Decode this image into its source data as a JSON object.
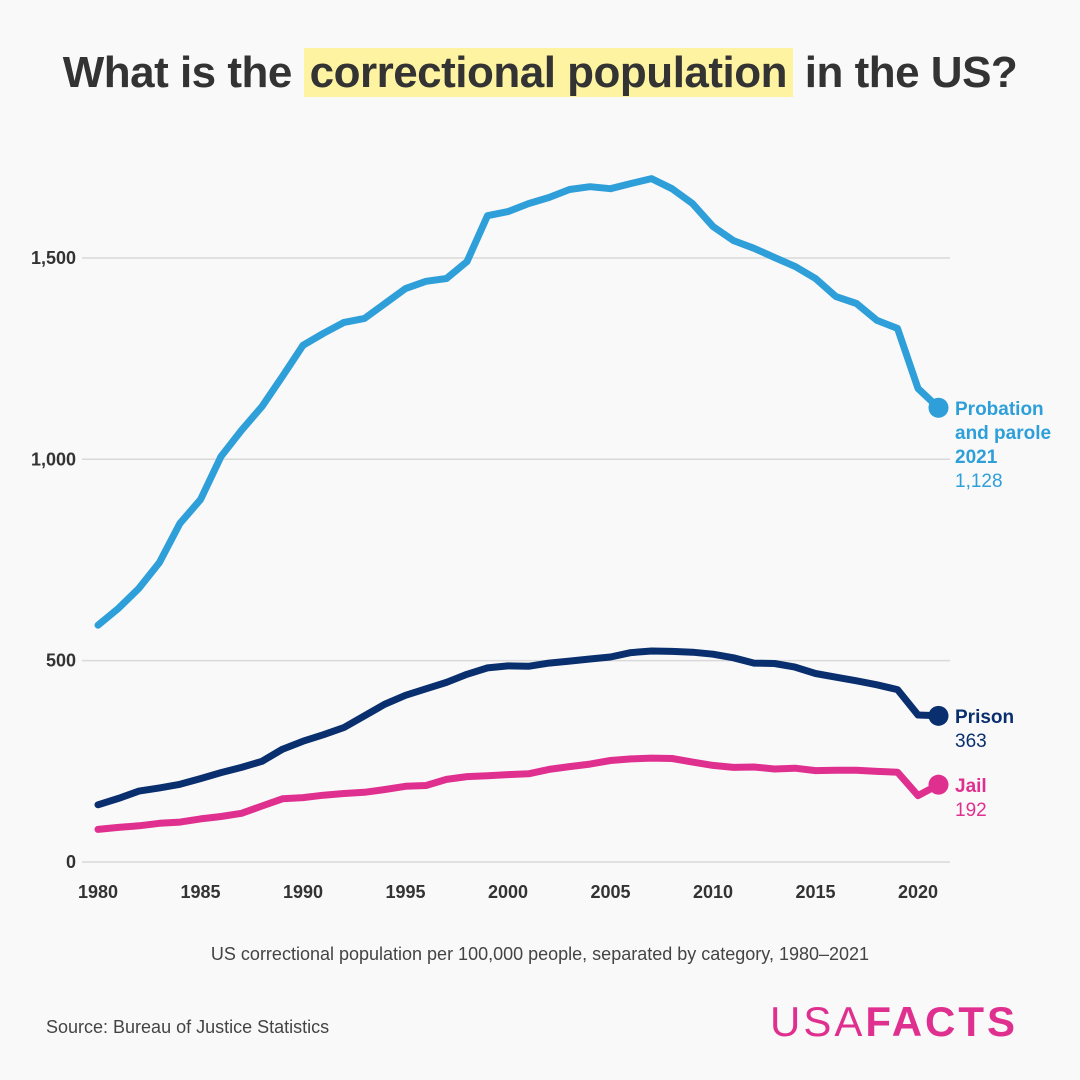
{
  "title": {
    "pre": "What is the ",
    "highlight": "correctional population",
    "post": " in the US?"
  },
  "subtitle": "US correctional population per 100,000 people, separated by category, 1980–2021",
  "source": "Source: Bureau of Justice Statistics",
  "logo": {
    "light": "USA",
    "bold": "FACTS"
  },
  "colors": {
    "probation": "#2e9fd9",
    "prison": "#0a2f6e",
    "jail": "#e0308f",
    "highlight": "#fdf3a0",
    "grid": "#d9d9d9"
  },
  "chart_data": {
    "type": "line",
    "title": "What is the correctional population in the US?",
    "subtitle": "US correctional population per 100,000 people, separated by category, 1980–2021",
    "xlim": [
      1980,
      2021
    ],
    "ylim": [
      0,
      1750
    ],
    "x_ticks": [
      "1980",
      "1985",
      "1990",
      "1995",
      "2000",
      "2005",
      "2010",
      "2015",
      "2020"
    ],
    "y_ticks": [
      "0",
      "500",
      "1,000",
      "1,500"
    ],
    "grid": "horizontal",
    "x": [
      1980,
      1981,
      1982,
      1983,
      1984,
      1985,
      1986,
      1987,
      1988,
      1989,
      1990,
      1991,
      1992,
      1993,
      1994,
      1995,
      1996,
      1997,
      1998,
      1999,
      2000,
      2001,
      2002,
      2003,
      2004,
      2005,
      2006,
      2007,
      2008,
      2009,
      2010,
      2011,
      2012,
      2013,
      2014,
      2015,
      2016,
      2017,
      2018,
      2019,
      2020,
      2021
    ],
    "series": [
      {
        "name": "Probation and parole",
        "end_label": "2021",
        "end_value": "1,128",
        "values": [
          588,
          630,
          680,
          744,
          841,
          900,
          1007,
          1072,
          1131,
          1206,
          1283,
          1313,
          1340,
          1350,
          1387,
          1424,
          1442,
          1449,
          1491,
          1605,
          1615,
          1635,
          1650,
          1670,
          1677,
          1672,
          1685,
          1697,
          1672,
          1635,
          1578,
          1543,
          1524,
          1501,
          1479,
          1449,
          1404,
          1387,
          1345,
          1325,
          1176,
          1128
        ]
      },
      {
        "name": "Prison",
        "end_value": "363",
        "values": [
          142,
          158,
          176,
          184,
          193,
          207,
          222,
          235,
          250,
          280,
          300,
          316,
          334,
          363,
          392,
          414,
          430,
          446,
          466,
          482,
          487,
          486,
          494,
          499,
          504,
          509,
          520,
          524,
          523,
          521,
          516,
          507,
          494,
          493,
          484,
          468,
          459,
          450,
          440,
          428,
          365,
          363
        ]
      },
      {
        "name": "Jail",
        "end_value": "192",
        "values": [
          81,
          86,
          90,
          96,
          99,
          107,
          113,
          121,
          139,
          157,
          160,
          166,
          170,
          173,
          180,
          188,
          190,
          205,
          212,
          214,
          217,
          219,
          230,
          237,
          243,
          252,
          256,
          258,
          257,
          248,
          240,
          235,
          236,
          231,
          233,
          227,
          228,
          228,
          225,
          223,
          165,
          192
        ]
      }
    ]
  }
}
